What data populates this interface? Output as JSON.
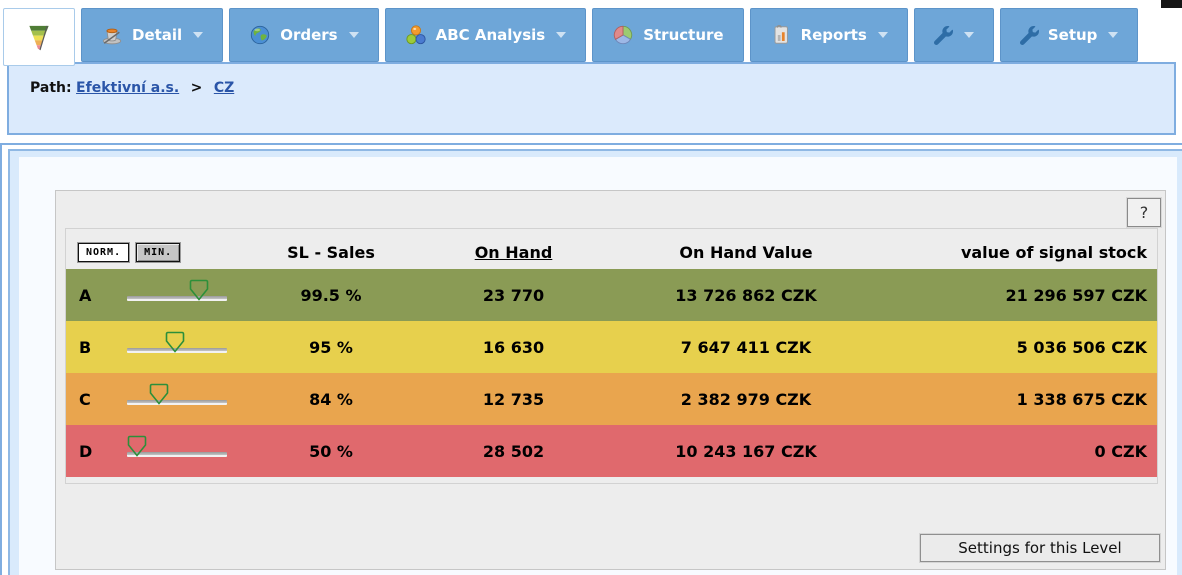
{
  "tabbar": {
    "tabs": [
      {
        "label": "",
        "icon": "abc-funnel-icon",
        "active": true,
        "has_dropdown": false
      },
      {
        "label": "Detail",
        "icon": "magic-hat-icon",
        "active": false,
        "has_dropdown": true
      },
      {
        "label": "Orders",
        "icon": "globe-icon",
        "active": false,
        "has_dropdown": true
      },
      {
        "label": "ABC Analysis",
        "icon": "abc-spheres-icon",
        "active": false,
        "has_dropdown": true
      },
      {
        "label": "Structure",
        "icon": "pie-chart-icon",
        "active": false,
        "has_dropdown": false
      },
      {
        "label": "Reports",
        "icon": "report-chart-icon",
        "active": false,
        "has_dropdown": true
      },
      {
        "label": "",
        "icon": "wrench-icon",
        "active": false,
        "has_dropdown": true
      },
      {
        "label": "Setup",
        "icon": "wrench-icon",
        "active": false,
        "has_dropdown": true
      }
    ],
    "tab_color": "#6ea6d8"
  },
  "breadcrumb": {
    "label": "Path:",
    "separator": ">",
    "links": [
      {
        "text": "Efektivní a.s."
      },
      {
        "text": "CZ"
      }
    ],
    "link_color": "#2a55a8"
  },
  "content": {
    "help_button": "?",
    "settings_button": "Settings for this Level",
    "table": {
      "toggle_buttons": {
        "norm": "NORM.",
        "min": "MIN."
      },
      "headers": {
        "sl_sales": "SL - Sales",
        "on_hand": "On Hand",
        "on_hand_value": "On Hand Value",
        "signal_stock": "value of signal stock"
      },
      "rows": [
        {
          "grade": "A",
          "color": "#8a9b55",
          "slider_pos": 0.78,
          "sl_sales": "99.5 %",
          "on_hand": "23 770",
          "on_hand_value": "13 726 862 CZK",
          "signal_stock": "21 296 597 CZK"
        },
        {
          "grade": "B",
          "color": "#e7d04d",
          "slider_pos": 0.47,
          "sl_sales": "95 %",
          "on_hand": "16 630",
          "on_hand_value": "7 647 411 CZK",
          "signal_stock": "5 036 506 CZK"
        },
        {
          "grade": "C",
          "color": "#e9a54e",
          "slider_pos": 0.28,
          "sl_sales": "84 %",
          "on_hand": "12 735",
          "on_hand_value": "2 382 979 CZK",
          "signal_stock": "1 338 675 CZK"
        },
        {
          "grade": "D",
          "color": "#e0696d",
          "slider_pos": 0.0,
          "sl_sales": "50 %",
          "on_hand": "28 502",
          "on_hand_value": "10 243 167 CZK",
          "signal_stock": "0 CZK"
        }
      ]
    }
  }
}
